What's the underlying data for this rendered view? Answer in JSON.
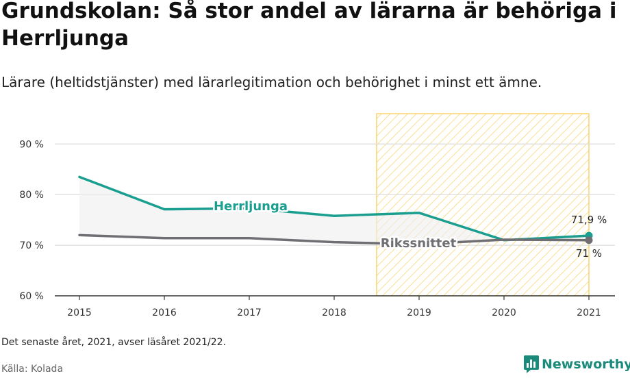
{
  "header": {
    "title": "Grundskolan: Så stor andel av lärarna är behöriga i Herrljunga",
    "subtitle": "Lärare (heltidstjänster) med lärarlegitimation och behörighet i minst ett ämne."
  },
  "footer": {
    "note": "Det senaste året, 2021, avser läsåret 2021/22.",
    "source": "Källa: Kolada",
    "brand": "Newsworthy"
  },
  "colors": {
    "herrljunga": "#1a9e8f",
    "rikssnittet": "#6e6e73",
    "highlight": "#f7c948",
    "grid": "#dddddd",
    "axis": "#333333"
  },
  "chart_data": {
    "type": "line",
    "x": [
      2015,
      2016,
      2017,
      2018,
      2019,
      2020,
      2021
    ],
    "xticks": [
      "2015",
      "2016",
      "2017",
      "2018",
      "2019",
      "2020",
      "2021"
    ],
    "yticks": [
      60,
      70,
      80,
      90
    ],
    "ytick_labels": [
      "60 %",
      "70 %",
      "80 %",
      "90 %"
    ],
    "ylim": [
      60,
      96
    ],
    "series": [
      {
        "name": "Herrljunga",
        "values": [
          83.5,
          77.1,
          77.3,
          75.8,
          76.4,
          71.0,
          71.9
        ],
        "end_label": "71,9 %"
      },
      {
        "name": "Rikssnittet",
        "values": [
          72.0,
          71.4,
          71.4,
          70.6,
          70.2,
          71.1,
          71.0
        ],
        "end_label": "71 %"
      }
    ],
    "highlight_range": [
      2018.5,
      2021
    ],
    "grid": true
  }
}
